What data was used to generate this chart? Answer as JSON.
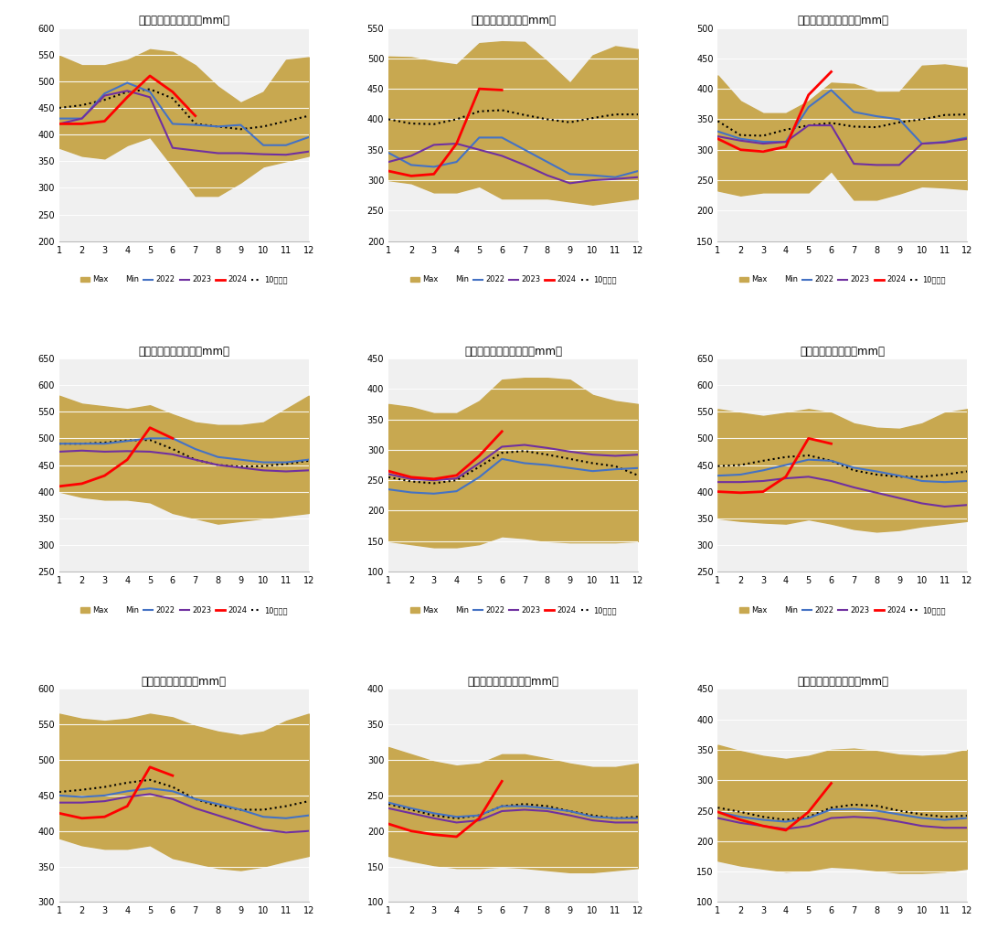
{
  "subplots": [
    {
      "title": "伊利诺伊州土壤墒情（mm）",
      "ylim": [
        200,
        600
      ],
      "yticks": [
        200,
        250,
        300,
        350,
        400,
        450,
        500,
        550,
        600
      ],
      "max": [
        548,
        530,
        530,
        540,
        560,
        555,
        530,
        490,
        460,
        480,
        540,
        545
      ],
      "min": [
        375,
        360,
        355,
        380,
        395,
        340,
        285,
        285,
        310,
        340,
        350,
        360
      ],
      "y2022": [
        430,
        430,
        477,
        497,
        480,
        420,
        418,
        415,
        418,
        380,
        380,
        395
      ],
      "y2023": [
        420,
        430,
        473,
        482,
        470,
        375,
        370,
        365,
        365,
        363,
        362,
        368
      ],
      "y2024": [
        420,
        420,
        425,
        470,
        510,
        480,
        435,
        null,
        null,
        null,
        null,
        null
      ],
      "y10avg": [
        450,
        455,
        465,
        480,
        485,
        468,
        420,
        415,
        410,
        415,
        425,
        435
      ]
    },
    {
      "title": "爱荷华州土壤墒情（mm）",
      "ylim": [
        200,
        550
      ],
      "yticks": [
        200,
        250,
        300,
        350,
        400,
        450,
        500,
        550
      ],
      "max": [
        503,
        502,
        495,
        490,
        525,
        528,
        527,
        495,
        460,
        505,
        520,
        515
      ],
      "min": [
        300,
        295,
        280,
        280,
        290,
        270,
        270,
        270,
        265,
        260,
        265,
        270
      ],
      "y2022": [
        345,
        325,
        322,
        330,
        370,
        370,
        350,
        330,
        310,
        308,
        305,
        315
      ],
      "y2023": [
        330,
        340,
        358,
        360,
        350,
        340,
        325,
        308,
        295,
        300,
        302,
        305
      ],
      "y2024": [
        315,
        307,
        310,
        360,
        450,
        448,
        null,
        null,
        null,
        null,
        null,
        null
      ],
      "y10avg": [
        400,
        393,
        392,
        400,
        413,
        415,
        407,
        400,
        395,
        402,
        408,
        408
      ]
    },
    {
      "title": "明尼苏达州土壤墒情（mm）",
      "ylim": [
        150,
        500
      ],
      "yticks": [
        150,
        200,
        250,
        300,
        350,
        400,
        450,
        500
      ],
      "max": [
        422,
        380,
        360,
        360,
        380,
        410,
        408,
        395,
        395,
        438,
        440,
        435
      ],
      "min": [
        233,
        225,
        230,
        230,
        230,
        265,
        218,
        218,
        228,
        240,
        238,
        235
      ],
      "y2022": [
        330,
        318,
        313,
        313,
        370,
        398,
        362,
        355,
        350,
        310,
        313,
        320
      ],
      "y2023": [
        322,
        315,
        310,
        313,
        340,
        340,
        277,
        275,
        275,
        310,
        312,
        318
      ],
      "y2024": [
        318,
        300,
        297,
        305,
        390,
        428,
        null,
        null,
        null,
        null,
        null,
        null
      ],
      "y10avg": [
        347,
        324,
        323,
        333,
        340,
        344,
        338,
        337,
        345,
        350,
        357,
        358
      ]
    },
    {
      "title": "印第安纳州土壤墒情（mm）",
      "ylim": [
        250,
        650
      ],
      "yticks": [
        250,
        300,
        350,
        400,
        450,
        500,
        550,
        600,
        650
      ],
      "max": [
        580,
        565,
        560,
        555,
        562,
        545,
        530,
        525,
        525,
        530,
        555,
        580
      ],
      "min": [
        400,
        390,
        385,
        385,
        380,
        360,
        350,
        340,
        345,
        350,
        355,
        360
      ],
      "y2022": [
        490,
        490,
        490,
        495,
        500,
        500,
        480,
        465,
        460,
        455,
        455,
        460
      ],
      "y2023": [
        475,
        477,
        475,
        476,
        475,
        470,
        460,
        450,
        445,
        440,
        438,
        440
      ],
      "y2024": [
        410,
        415,
        430,
        460,
        520,
        500,
        null,
        null,
        null,
        null,
        null,
        null
      ],
      "y10avg": [
        490,
        490,
        492,
        496,
        497,
        480,
        460,
        450,
        447,
        448,
        452,
        458
      ]
    },
    {
      "title": "内布拉斯加州土壤墒情（mm）",
      "ylim": [
        100,
        450
      ],
      "yticks": [
        100,
        150,
        200,
        250,
        300,
        350,
        400,
        450
      ],
      "max": [
        375,
        370,
        360,
        360,
        380,
        415,
        418,
        418,
        415,
        390,
        380,
        375
      ],
      "min": [
        150,
        145,
        140,
        140,
        145,
        158,
        155,
        150,
        148,
        148,
        148,
        150
      ],
      "y2022": [
        235,
        230,
        228,
        232,
        255,
        285,
        278,
        275,
        270,
        265,
        268,
        270
      ],
      "y2023": [
        260,
        252,
        250,
        253,
        278,
        305,
        308,
        303,
        297,
        292,
        290,
        292
      ],
      "y2024": [
        265,
        255,
        252,
        258,
        290,
        330,
        null,
        null,
        null,
        null,
        null,
        null
      ],
      "y10avg": [
        255,
        248,
        245,
        250,
        272,
        295,
        298,
        292,
        285,
        278,
        273,
        258
      ]
    },
    {
      "title": "密苏里州土壤墒情（mm）",
      "ylim": [
        250,
        650
      ],
      "yticks": [
        250,
        300,
        350,
        400,
        450,
        500,
        550,
        600,
        650
      ],
      "max": [
        555,
        548,
        542,
        548,
        555,
        548,
        528,
        520,
        518,
        528,
        548,
        555
      ],
      "min": [
        350,
        345,
        342,
        340,
        348,
        340,
        330,
        325,
        328,
        335,
        340,
        345
      ],
      "y2022": [
        430,
        432,
        440,
        450,
        460,
        458,
        445,
        438,
        430,
        420,
        418,
        420
      ],
      "y2023": [
        418,
        418,
        420,
        425,
        428,
        420,
        408,
        398,
        388,
        378,
        372,
        375
      ],
      "y2024": [
        400,
        398,
        400,
        428,
        500,
        490,
        null,
        null,
        null,
        null,
        null,
        null
      ],
      "y10avg": [
        448,
        450,
        458,
        465,
        468,
        458,
        440,
        432,
        428,
        428,
        432,
        438
      ]
    },
    {
      "title": "俄亥俄州土壤墒情（mm）",
      "ylim": [
        300,
        600
      ],
      "yticks": [
        300,
        350,
        400,
        450,
        500,
        550,
        600
      ],
      "max": [
        565,
        558,
        555,
        558,
        565,
        560,
        548,
        540,
        535,
        540,
        555,
        565
      ],
      "min": [
        390,
        380,
        375,
        375,
        380,
        362,
        355,
        348,
        345,
        350,
        358,
        365
      ],
      "y2022": [
        450,
        448,
        450,
        456,
        460,
        456,
        445,
        438,
        430,
        420,
        418,
        422
      ],
      "y2023": [
        440,
        440,
        442,
        448,
        452,
        445,
        432,
        422,
        412,
        402,
        398,
        400
      ],
      "y2024": [
        425,
        418,
        420,
        435,
        490,
        478,
        null,
        null,
        null,
        null,
        null,
        null
      ],
      "y10avg": [
        455,
        458,
        462,
        468,
        472,
        462,
        445,
        435,
        430,
        430,
        435,
        442
      ]
    },
    {
      "title": "北达科他州土壤墒情（mm）",
      "ylim": [
        100,
        400
      ],
      "yticks": [
        100,
        150,
        200,
        250,
        300,
        350,
        400
      ],
      "max": [
        318,
        308,
        298,
        292,
        295,
        308,
        308,
        302,
        295,
        290,
        290,
        295
      ],
      "min": [
        165,
        158,
        152,
        148,
        148,
        150,
        148,
        145,
        142,
        142,
        145,
        148
      ],
      "y2022": [
        240,
        232,
        225,
        220,
        222,
        235,
        235,
        232,
        228,
        220,
        218,
        218
      ],
      "y2023": [
        232,
        225,
        218,
        212,
        215,
        228,
        230,
        228,
        222,
        215,
        212,
        212
      ],
      "y2024": [
        210,
        200,
        195,
        192,
        218,
        270,
        null,
        null,
        null,
        null,
        null,
        null
      ],
      "y10avg": [
        238,
        230,
        222,
        218,
        222,
        235,
        238,
        235,
        228,
        222,
        218,
        220
      ]
    },
    {
      "title": "南达科他州土壤墒情（mm）",
      "ylim": [
        100,
        450
      ],
      "yticks": [
        100,
        150,
        200,
        250,
        300,
        350,
        400,
        450
      ],
      "max": [
        358,
        348,
        340,
        335,
        340,
        350,
        352,
        348,
        342,
        340,
        342,
        350
      ],
      "min": [
        168,
        160,
        155,
        150,
        152,
        158,
        156,
        152,
        148,
        148,
        150,
        155
      ],
      "y2022": [
        248,
        240,
        235,
        232,
        238,
        252,
        253,
        250,
        244,
        238,
        235,
        238
      ],
      "y2023": [
        238,
        230,
        225,
        220,
        225,
        238,
        240,
        238,
        232,
        225,
        222,
        222
      ],
      "y2024": [
        248,
        235,
        225,
        218,
        248,
        295,
        null,
        null,
        null,
        null,
        null,
        null
      ],
      "y10avg": [
        255,
        248,
        240,
        235,
        240,
        255,
        260,
        258,
        250,
        244,
        240,
        242
      ]
    }
  ],
  "colors": {
    "band": "#C8A850",
    "y2022": "#4472C4",
    "y2023": "#7030A0",
    "y2024": "#FF0000",
    "y10avg": "#000000",
    "background": "#F0F0F0"
  },
  "months": [
    1,
    2,
    3,
    4,
    5,
    6,
    7,
    8,
    9,
    10,
    11,
    12
  ]
}
